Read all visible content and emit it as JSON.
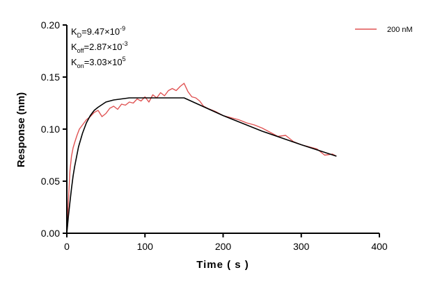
{
  "chart_data": {
    "type": "line",
    "xlabel": "Time ( s )",
    "ylabel": "Response (nm)",
    "xlim": [
      0,
      400
    ],
    "ylim": [
      0,
      0.2
    ],
    "x_ticks": [
      0,
      100,
      200,
      300,
      400
    ],
    "x_tick_labels": [
      "0",
      "100",
      "200",
      "300",
      "400"
    ],
    "y_ticks": [
      0,
      0.05,
      0.1,
      0.15,
      0.2
    ],
    "y_tick_labels": [
      "0.00",
      "0.05",
      "0.10",
      "0.15",
      "0.20"
    ],
    "grid": false,
    "legend_position": "top-right",
    "annotations": [
      {
        "base": "K",
        "sub": "D",
        "value": "=9.47×10",
        "exp": "-9"
      },
      {
        "base": "K",
        "sub": "off",
        "value": "=2.87×10",
        "exp": "-3"
      },
      {
        "base": "K",
        "sub": "on",
        "value": "=3.03×10",
        "exp": "5"
      }
    ],
    "series": [
      {
        "name": "200 nM",
        "color": "#e05252",
        "x": [
          0,
          2,
          4,
          6,
          8,
          10,
          13,
          16,
          20,
          25,
          30,
          35,
          40,
          45,
          50,
          55,
          60,
          65,
          70,
          75,
          80,
          85,
          90,
          95,
          100,
          105,
          110,
          115,
          120,
          125,
          130,
          135,
          140,
          145,
          150,
          155,
          160,
          165,
          170,
          175,
          180,
          190,
          200,
          210,
          220,
          230,
          240,
          250,
          260,
          270,
          280,
          290,
          300,
          310,
          320,
          330,
          340,
          345
        ],
        "y": [
          0.0,
          0.03,
          0.06,
          0.074,
          0.082,
          0.087,
          0.094,
          0.1,
          0.104,
          0.109,
          0.112,
          0.116,
          0.118,
          0.112,
          0.115,
          0.12,
          0.122,
          0.119,
          0.124,
          0.123,
          0.126,
          0.125,
          0.129,
          0.127,
          0.131,
          0.126,
          0.133,
          0.13,
          0.135,
          0.132,
          0.137,
          0.139,
          0.137,
          0.141,
          0.144,
          0.136,
          0.131,
          0.13,
          0.127,
          0.122,
          0.12,
          0.117,
          0.113,
          0.111,
          0.109,
          0.106,
          0.104,
          0.101,
          0.097,
          0.093,
          0.094,
          0.088,
          0.085,
          0.083,
          0.081,
          0.075,
          0.076,
          0.074
        ]
      },
      {
        "name": "",
        "color": "#000000",
        "x": [
          0,
          2,
          4,
          6,
          8,
          10,
          15,
          20,
          25,
          30,
          35,
          40,
          50,
          60,
          70,
          80,
          100,
          120,
          140,
          150,
          200,
          250,
          300,
          345
        ],
        "y": [
          0.0,
          0.016,
          0.03,
          0.043,
          0.055,
          0.064,
          0.083,
          0.096,
          0.106,
          0.113,
          0.118,
          0.121,
          0.126,
          0.128,
          0.129,
          0.13,
          0.13,
          0.13,
          0.13,
          0.13,
          0.113,
          0.098,
          0.085,
          0.074
        ]
      }
    ]
  }
}
